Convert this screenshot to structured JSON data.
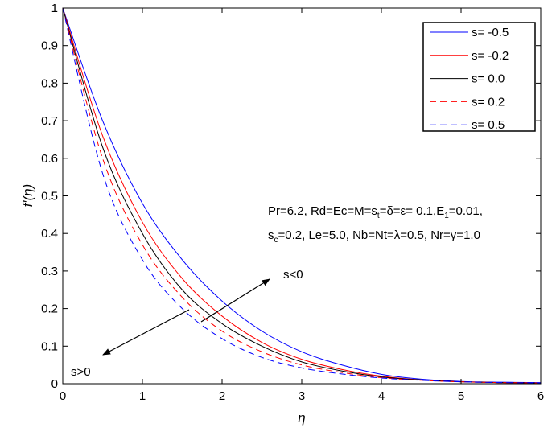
{
  "chart_data": {
    "type": "line",
    "xlabel": "η",
    "ylabel": "f′(η)",
    "xlim": [
      0,
      6
    ],
    "ylim": [
      0,
      1
    ],
    "xticks": [
      "0",
      "1",
      "2",
      "3",
      "4",
      "5",
      "6"
    ],
    "yticks": [
      "0",
      "0.1",
      "0.2",
      "0.3",
      "0.4",
      "0.5",
      "0.6",
      "0.7",
      "0.8",
      "0.9",
      "1"
    ],
    "grid": false,
    "legend_placement": "top-right",
    "x": [
      0,
      0.5,
      1,
      1.5,
      2,
      2.5,
      3,
      3.5,
      4,
      4.5,
      5,
      5.5,
      6
    ],
    "series": [
      {
        "name": "s= -0.5",
        "color": "#0000ff",
        "dash": "solid",
        "values": [
          1,
          0.7,
          0.48,
          0.33,
          0.22,
          0.14,
          0.085,
          0.05,
          0.025,
          0.012,
          0.006,
          0.004,
          0.003
        ]
      },
      {
        "name": "s= -0.2",
        "color": "#ff0000",
        "dash": "solid",
        "values": [
          1,
          0.66,
          0.43,
          0.28,
          0.18,
          0.11,
          0.065,
          0.038,
          0.02,
          0.01,
          0.005,
          0.003,
          0.002
        ]
      },
      {
        "name": "s= 0.0",
        "color": "#000000",
        "dash": "solid",
        "values": [
          1,
          0.63,
          0.4,
          0.25,
          0.16,
          0.1,
          0.058,
          0.034,
          0.018,
          0.01,
          0.005,
          0.003,
          0.002
        ]
      },
      {
        "name": "s= 0.2",
        "color": "#ff0000",
        "dash": "dashed",
        "values": [
          1,
          0.6,
          0.37,
          0.23,
          0.14,
          0.085,
          0.05,
          0.03,
          0.016,
          0.009,
          0.005,
          0.003,
          0.002
        ]
      },
      {
        "name": "s= 0.5",
        "color": "#0000ff",
        "dash": "dashed",
        "values": [
          1,
          0.56,
          0.33,
          0.2,
          0.12,
          0.07,
          0.042,
          0.026,
          0.015,
          0.009,
          0.005,
          0.003,
          0.002
        ]
      }
    ],
    "annotations": {
      "params_line1": "Pr=6.2, Rd=Ec=M=s",
      "params_line1_sub": "t",
      "params_line1_rest": "=δ=ε= 0.1,E",
      "params_line1_sub2": "1",
      "params_line1_end": "=0.01,",
      "params_line2": "s",
      "params_line2_sub": "c",
      "params_line2_rest": "=0.2, Le=5.0, Nb=Nt=λ=0.5, Nr=γ=1.0",
      "arrow_up_label": "s<0",
      "arrow_down_label": "s>0"
    }
  }
}
